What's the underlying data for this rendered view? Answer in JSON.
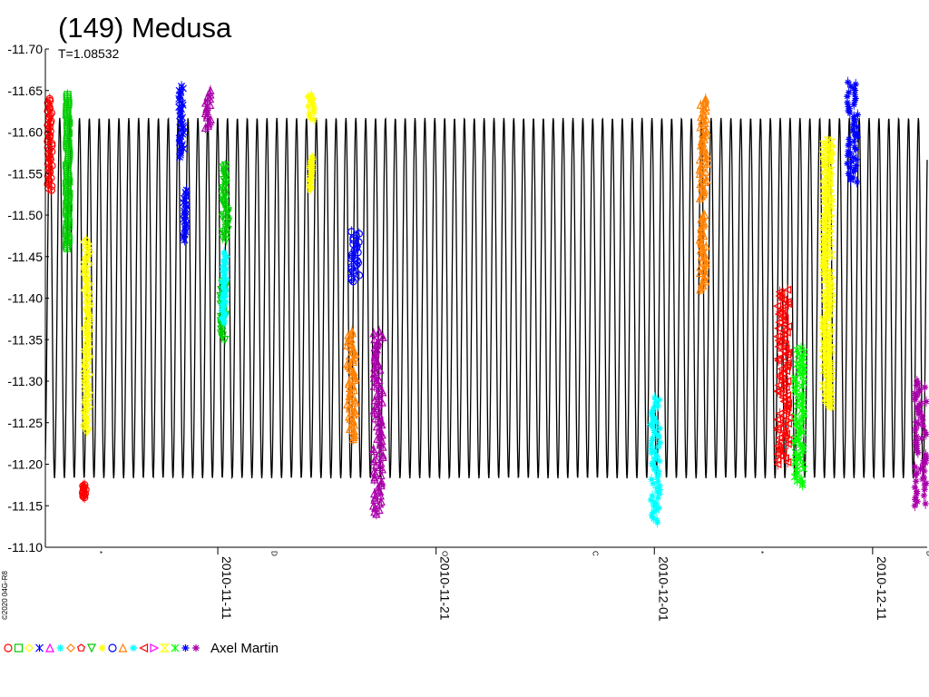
{
  "chart_data": {
    "type": "scatter",
    "title": "(149) Medusa",
    "subtitle": "T=1.08532",
    "copyright": "©2020 04G-R8",
    "ylim": [
      -11.7,
      -11.1
    ],
    "y_reversed": true,
    "y_ticks": [
      "-11.70",
      "-11.65",
      "-11.60",
      "-11.55",
      "-11.50",
      "-11.45",
      "-11.40",
      "-11.35",
      "-11.30",
      "-11.25",
      "-11.20",
      "-11.15",
      "-11.10"
    ],
    "x_range_days": [
      -7.9,
      32.5
    ],
    "x_ticks": [
      {
        "label": "2010-11-11",
        "day": 0
      },
      {
        "label": "2010-11-21",
        "day": 10
      },
      {
        "label": "2010-12-01",
        "day": 20
      },
      {
        "label": "2010-12-11",
        "day": 30
      }
    ],
    "moon_phases": [
      {
        "day": -5.4,
        "glyph": "*"
      },
      {
        "day": 2.6,
        "glyph": "D"
      },
      {
        "day": 10.4,
        "glyph": "O"
      },
      {
        "day": 17.3,
        "glyph": "C"
      },
      {
        "day": 24.9,
        "glyph": "*"
      },
      {
        "day": 32.6,
        "glyph": "D"
      }
    ],
    "model_curve": {
      "period_days": 0.4522,
      "min": -11.635,
      "max": -11.165,
      "color": "#000000"
    },
    "legend_label": "Axel Martin",
    "legend_markers": [
      {
        "shape": "circle",
        "color": "#ff0000"
      },
      {
        "shape": "square",
        "color": "#00cc00"
      },
      {
        "shape": "diamond",
        "color": "#ffff00"
      },
      {
        "shape": "cross",
        "color": "#0000ff"
      },
      {
        "shape": "triangle",
        "color": "#ff00ff"
      },
      {
        "shape": "star",
        "color": "#00ffff"
      },
      {
        "shape": "diamond",
        "color": "#ff8000"
      },
      {
        "shape": "pentagon",
        "color": "#ff0000"
      },
      {
        "shape": "tri-down",
        "color": "#00cc00"
      },
      {
        "shape": "star",
        "color": "#ffff00"
      },
      {
        "shape": "circle",
        "color": "#0000ff"
      },
      {
        "shape": "triangle",
        "color": "#ff8000"
      },
      {
        "shape": "star",
        "color": "#00ffff"
      },
      {
        "shape": "tri-left",
        "color": "#ff0000"
      },
      {
        "shape": "tri-right",
        "color": "#ff00ff"
      },
      {
        "shape": "hourglass",
        "color": "#ffff00"
      },
      {
        "shape": "cross",
        "color": "#00ff00"
      },
      {
        "shape": "star",
        "color": "#0000ff"
      },
      {
        "shape": "star",
        "color": "#aa00aa"
      }
    ],
    "series": [
      {
        "color": "#ff0000",
        "marker": "circle",
        "segments": [
          {
            "d0": -7.82,
            "d1": -7.58,
            "ylo": -11.64,
            "yhi": -11.53
          }
        ]
      },
      {
        "color": "#00cc00",
        "marker": "square",
        "segments": [
          {
            "d0": -6.95,
            "d1": -6.8,
            "ylo": -11.645,
            "yhi": -11.46
          }
        ]
      },
      {
        "color": "#ff0000",
        "marker": "circle",
        "segments": [
          {
            "d0": -6.2,
            "d1": -6.0,
            "ylo": -11.175,
            "yhi": -11.16
          }
        ]
      },
      {
        "color": "#ffff00",
        "marker": "diamond",
        "segments": [
          {
            "d0": -6.15,
            "d1": -5.85,
            "ylo": -11.47,
            "yhi": -11.24
          }
        ]
      },
      {
        "color": "#0000ff",
        "marker": "cross",
        "segments": [
          {
            "d0": -1.8,
            "d1": -1.55,
            "ylo": -11.655,
            "yhi": -11.57
          },
          {
            "d0": -1.6,
            "d1": -1.4,
            "ylo": -11.53,
            "yhi": -11.47
          }
        ]
      },
      {
        "color": "#aa00aa",
        "marker": "triangle",
        "segments": [
          {
            "d0": -0.6,
            "d1": -0.3,
            "ylo": -11.65,
            "yhi": -11.605
          }
        ]
      },
      {
        "color": "#00cc00",
        "marker": "tri-down",
        "segments": [
          {
            "d0": 0.2,
            "d1": 0.5,
            "ylo": -11.56,
            "yhi": -11.47
          },
          {
            "d0": 0.1,
            "d1": 0.4,
            "ylo": -11.42,
            "yhi": -11.35
          }
        ]
      },
      {
        "color": "#00ffff",
        "marker": "star",
        "segments": [
          {
            "d0": 0.15,
            "d1": 0.45,
            "ylo": -11.455,
            "yhi": -11.37
          }
        ]
      },
      {
        "color": "#ffff00",
        "marker": "star",
        "segments": [
          {
            "d0": 4.1,
            "d1": 4.45,
            "ylo": -11.645,
            "yhi": -11.615
          },
          {
            "d0": 4.15,
            "d1": 4.4,
            "ylo": -11.57,
            "yhi": -11.53
          }
        ]
      },
      {
        "color": "#0000ff",
        "marker": "circle",
        "segments": [
          {
            "d0": 6.1,
            "d1": 6.5,
            "ylo": -11.48,
            "yhi": -11.42
          }
        ]
      },
      {
        "color": "#ff8000",
        "marker": "triangle",
        "segments": [
          {
            "d0": 5.9,
            "d1": 6.35,
            "ylo": -11.36,
            "yhi": -11.23
          }
        ]
      },
      {
        "color": "#aa00aa",
        "marker": "triangle",
        "segments": [
          {
            "d0": 7.1,
            "d1": 7.6,
            "ylo": -11.36,
            "yhi": -11.14
          }
        ]
      },
      {
        "color": "#00ffff",
        "marker": "star",
        "segments": [
          {
            "d0": 19.8,
            "d1": 20.3,
            "ylo": -11.28,
            "yhi": -11.13
          }
        ]
      },
      {
        "color": "#ff8000",
        "marker": "triangle",
        "segments": [
          {
            "d0": 22.05,
            "d1": 22.45,
            "ylo": -11.64,
            "yhi": -11.52
          },
          {
            "d0": 22.05,
            "d1": 22.4,
            "ylo": -11.5,
            "yhi": -11.41
          }
        ]
      },
      {
        "color": "#ff0000",
        "marker": "tri-left",
        "segments": [
          {
            "d0": 25.6,
            "d1": 26.2,
            "ylo": -11.41,
            "yhi": -11.2
          }
        ]
      },
      {
        "color": "#00ff00",
        "marker": "cross",
        "segments": [
          {
            "d0": 26.4,
            "d1": 26.9,
            "ylo": -11.34,
            "yhi": -11.175
          }
        ]
      },
      {
        "color": "#ffff00",
        "marker": "hourglass",
        "segments": [
          {
            "d0": 27.7,
            "d1": 28.15,
            "ylo": -11.59,
            "yhi": -11.27
          }
        ]
      },
      {
        "color": "#0000ff",
        "marker": "star",
        "segments": [
          {
            "d0": 28.8,
            "d1": 29.35,
            "ylo": -11.66,
            "yhi": -11.54
          }
        ]
      },
      {
        "color": "#aa00aa",
        "marker": "star",
        "segments": [
          {
            "d0": 31.9,
            "d1": 32.5,
            "ylo": -11.3,
            "yhi": -11.15
          }
        ]
      }
    ]
  }
}
